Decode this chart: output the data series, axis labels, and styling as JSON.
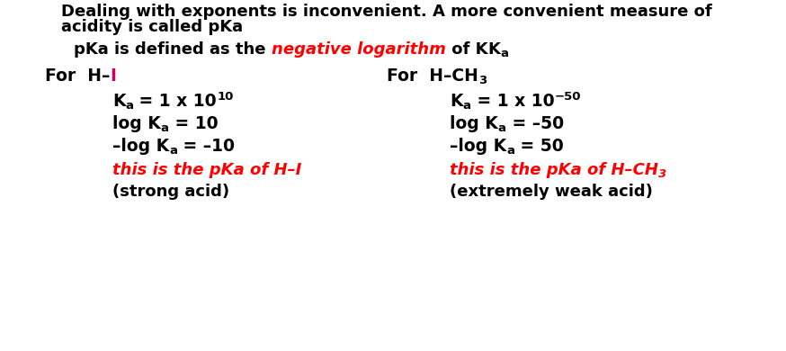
{
  "bg_color": "#ffffff",
  "title_line1": "Dealing with exponents is inconvenient. A more convenient measure of",
  "title_line2": "acidity is called pKa",
  "subtitle_pre": "pKa is defined as the ",
  "subtitle_red": "negative logarithm",
  "subtitle_post": " of K",
  "black": "#000000",
  "red": "#ff0000",
  "pink_I": "#cc0066",
  "fs_title": 13.0,
  "fs_sub": 13.0,
  "fs_body": 13.5,
  "fs_script": 9.5,
  "fs_pka_red": 13.0,
  "fs_strength": 13.0
}
